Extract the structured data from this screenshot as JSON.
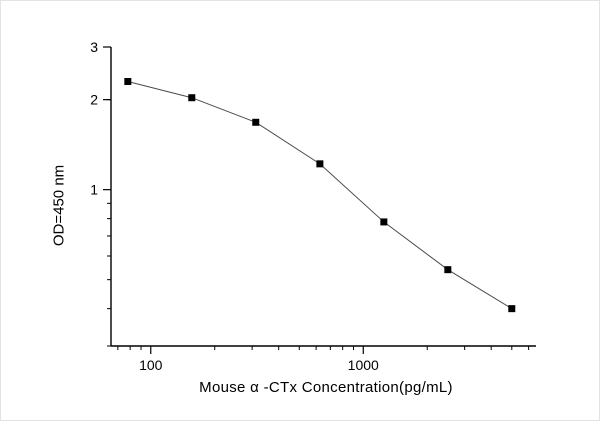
{
  "chart_data": {
    "type": "scatter",
    "title": "",
    "xlabel": "Mouse α -CTx  Concentration(pg/mL)",
    "ylabel": "OD=450 nm",
    "x_scale": "log",
    "y_scale": "log",
    "x": [
      78,
      156,
      312,
      625,
      1250,
      2500,
      5000
    ],
    "y": [
      2.3,
      2.03,
      1.68,
      1.22,
      0.78,
      0.54,
      0.4
    ],
    "xlim": [
      65,
      6500
    ],
    "ylim": [
      0.3,
      3
    ],
    "x_major_ticks": [
      100,
      1000
    ],
    "x_major_tick_labels": [
      "100",
      "1000"
    ],
    "y_major_ticks": [
      1,
      2,
      3
    ],
    "y_major_tick_labels": [
      "1",
      "2",
      "3"
    ],
    "grid": "off",
    "legend": "none",
    "marker": "filled-square",
    "marker_color": "#000000",
    "line_color": "#4a4a4a",
    "axis_color": "#000000",
    "background_color": "#ffffff"
  }
}
